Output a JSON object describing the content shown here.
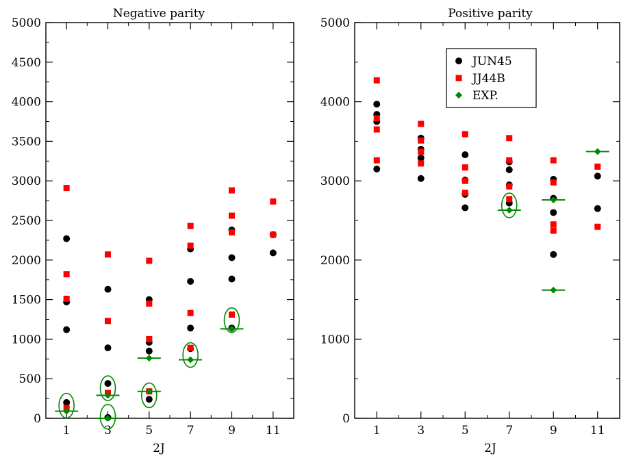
{
  "chart_data": [
    {
      "type": "scatter",
      "title": "Negative parity",
      "xlabel": "2J",
      "ylabel": "",
      "xlim": [
        0,
        12
      ],
      "ylim": [
        0,
        5000
      ],
      "x_ticks": [
        1,
        3,
        5,
        7,
        9,
        11
      ],
      "y_ticks": [
        0,
        500,
        1000,
        1500,
        2000,
        2500,
        3000,
        3500,
        4000,
        4500,
        5000
      ],
      "series": [
        {
          "name": "JUN45",
          "marker": "circle",
          "color": "#000000",
          "points": [
            [
              1,
              2270
            ],
            [
              1,
              1470
            ],
            [
              1,
              1120
            ],
            [
              1,
              200
            ],
            [
              3,
              1630
            ],
            [
              3,
              890
            ],
            [
              3,
              440
            ],
            [
              3,
              10
            ],
            [
              5,
              1500
            ],
            [
              5,
              960
            ],
            [
              5,
              850
            ],
            [
              5,
              240
            ],
            [
              7,
              2140
            ],
            [
              7,
              1730
            ],
            [
              7,
              1140
            ],
            [
              7,
              880
            ],
            [
              9,
              2380
            ],
            [
              9,
              2030
            ],
            [
              9,
              1760
            ],
            [
              9,
              1140
            ],
            [
              11,
              2320
            ],
            [
              11,
              2090
            ]
          ]
        },
        {
          "name": "JJ44B",
          "marker": "square",
          "color": "#ff0000",
          "points": [
            [
              1,
              2910
            ],
            [
              1,
              1820
            ],
            [
              1,
              1510
            ],
            [
              1,
              130
            ],
            [
              3,
              2070
            ],
            [
              3,
              1230
            ],
            [
              3,
              320
            ],
            [
              5,
              1990
            ],
            [
              5,
              1450
            ],
            [
              5,
              1000
            ],
            [
              5,
              340
            ],
            [
              7,
              2430
            ],
            [
              7,
              2180
            ],
            [
              7,
              1330
            ],
            [
              7,
              890
            ],
            [
              9,
              2880
            ],
            [
              9,
              2560
            ],
            [
              9,
              2350
            ],
            [
              9,
              1310
            ],
            [
              11,
              2740
            ],
            [
              11,
              2320
            ]
          ]
        },
        {
          "name": "EXP.",
          "marker": "diamond",
          "color": "#008800",
          "points": [
            [
              1,
              90
            ],
            [
              3,
              290
            ],
            [
              3,
              0
            ],
            [
              5,
              760
            ],
            [
              5,
              340
            ],
            [
              7,
              740
            ],
            [
              9,
              1130
            ]
          ]
        }
      ],
      "circled": [
        [
          1,
          160
        ],
        [
          3,
          380
        ],
        [
          3,
          20
        ],
        [
          5,
          290
        ],
        [
          7,
          800
        ],
        [
          9,
          1240
        ]
      ]
    },
    {
      "type": "scatter",
      "title": "Positive parity",
      "xlabel": "2J",
      "ylabel": "",
      "xlim": [
        0,
        12
      ],
      "ylim": [
        0,
        5000
      ],
      "x_ticks": [
        1,
        3,
        5,
        7,
        9,
        11
      ],
      "y_ticks": [
        0,
        1000,
        2000,
        3000,
        4000,
        5000
      ],
      "legend": {
        "position": "top-center",
        "entries": [
          "JUN45",
          "JJ44B",
          "EXP."
        ]
      },
      "series": [
        {
          "name": "JUN45",
          "marker": "circle",
          "color": "#000000",
          "points": [
            [
              1,
              3970
            ],
            [
              1,
              3840
            ],
            [
              1,
              3750
            ],
            [
              1,
              3150
            ],
            [
              3,
              3540
            ],
            [
              3,
              3400
            ],
            [
              3,
              3290
            ],
            [
              3,
              3030
            ],
            [
              5,
              3330
            ],
            [
              5,
              3010
            ],
            [
              5,
              2830
            ],
            [
              5,
              2660
            ],
            [
              7,
              3240
            ],
            [
              7,
              3140
            ],
            [
              7,
              2950
            ],
            [
              7,
              2720
            ],
            [
              9,
              3020
            ],
            [
              9,
              2780
            ],
            [
              9,
              2600
            ],
            [
              9,
              2070
            ],
            [
              11,
              3060
            ],
            [
              11,
              2650
            ]
          ]
        },
        {
          "name": "JJ44B",
          "marker": "square",
          "color": "#ff0000",
          "points": [
            [
              1,
              4270
            ],
            [
              1,
              3790
            ],
            [
              1,
              3650
            ],
            [
              1,
              3260
            ],
            [
              3,
              3720
            ],
            [
              3,
              3510
            ],
            [
              3,
              3370
            ],
            [
              3,
              3220
            ],
            [
              5,
              3590
            ],
            [
              5,
              3170
            ],
            [
              5,
              3000
            ],
            [
              5,
              2850
            ],
            [
              7,
              3540
            ],
            [
              7,
              3260
            ],
            [
              7,
              2930
            ],
            [
              7,
              2770
            ],
            [
              9,
              3260
            ],
            [
              9,
              2980
            ],
            [
              9,
              2450
            ],
            [
              9,
              2370
            ],
            [
              11,
              3180
            ],
            [
              11,
              2420
            ]
          ]
        },
        {
          "name": "EXP.",
          "marker": "diamond",
          "color": "#008800",
          "points": [
            [
              7,
              2630
            ],
            [
              9,
              2760
            ],
            [
              9,
              1620
            ],
            [
              11,
              3370
            ]
          ]
        }
      ],
      "circled": [
        [
          7,
          2690
        ]
      ]
    }
  ]
}
